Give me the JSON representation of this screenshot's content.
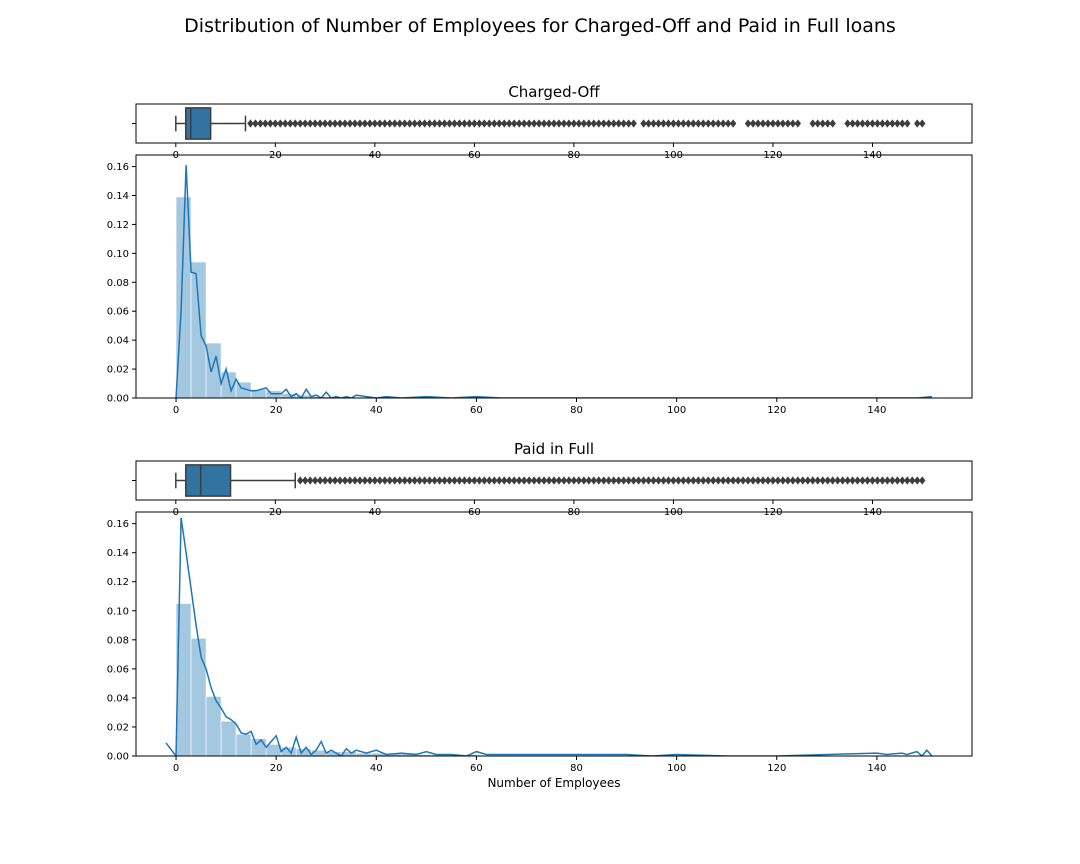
{
  "figure": {
    "suptitle": "Distribution of Number of Employees for Charged-Off and Paid in Full loans"
  },
  "colors": {
    "hist_fill": "#a5c8e1",
    "kde_line": "#1f77b4",
    "box_fill": "#3274a1",
    "box_edge": "#3d3d3d",
    "axes_edge": "#000000"
  },
  "chart_data": [
    {
      "type": "boxplot",
      "title": "Charged-Off",
      "xlim": [
        -8,
        160
      ],
      "xticks": [
        0,
        20,
        40,
        60,
        80,
        100,
        120,
        140
      ],
      "whisker_low": 0,
      "q1": 2,
      "median": 3,
      "q3": 7,
      "whisker_high": 14,
      "outliers": [
        15,
        16,
        17,
        18,
        19,
        20,
        21,
        22,
        23,
        24,
        25,
        26,
        27,
        28,
        29,
        30,
        31,
        32,
        33,
        34,
        35,
        36,
        37,
        38,
        39,
        40,
        41,
        42,
        43,
        44,
        45,
        46,
        47,
        48,
        49,
        50,
        51,
        52,
        53,
        54,
        55,
        56,
        57,
        58,
        59,
        60,
        61,
        62,
        63,
        64,
        65,
        66,
        67,
        68,
        69,
        70,
        71,
        72,
        73,
        74,
        75,
        76,
        77,
        78,
        79,
        80,
        81,
        82,
        83,
        84,
        85,
        86,
        87,
        88,
        89,
        90,
        91,
        92,
        94,
        95,
        96,
        97,
        98,
        99,
        100,
        101,
        102,
        103,
        104,
        105,
        106,
        107,
        108,
        109,
        110,
        111,
        112,
        115,
        116,
        117,
        118,
        119,
        120,
        121,
        122,
        123,
        124,
        125,
        128,
        129,
        130,
        131,
        132,
        135,
        136,
        137,
        138,
        139,
        140,
        141,
        142,
        143,
        144,
        145,
        146,
        147,
        149,
        150
      ]
    },
    {
      "type": "bar",
      "overlay": "line",
      "title": "",
      "xlim": [
        -8,
        159
      ],
      "ylim": [
        0,
        0.168
      ],
      "xticks": [
        0,
        20,
        40,
        60,
        80,
        100,
        120,
        140
      ],
      "yticks": [
        "0.00",
        "0.02",
        "0.04",
        "0.06",
        "0.08",
        "0.10",
        "0.12",
        "0.14",
        "0.16"
      ],
      "hist_bin_width": 3,
      "hist_values": [
        0.139,
        0.094,
        0.038,
        0.018,
        0.011,
        0.006,
        0.005,
        0.003,
        0.002,
        0.001,
        0.001,
        0.0005,
        0.0005,
        0.0003,
        0.0003,
        0.0003,
        0.0002,
        0.0002,
        0.0002,
        0.0002
      ],
      "kde_x": [
        0,
        1,
        2,
        3,
        4,
        5,
        6,
        7,
        8,
        9,
        10,
        11,
        12,
        13,
        14,
        15,
        16,
        17,
        18,
        19,
        20,
        21,
        22,
        23,
        24,
        25,
        26,
        27,
        28,
        29,
        30,
        31,
        32,
        33,
        34,
        35,
        36,
        38,
        40,
        42,
        45,
        50,
        55,
        60,
        65,
        70,
        75,
        80,
        90,
        100,
        110,
        120,
        130,
        140,
        145,
        148,
        151
      ],
      "kde_y": [
        0.0,
        0.06,
        0.161,
        0.087,
        0.086,
        0.043,
        0.036,
        0.018,
        0.029,
        0.01,
        0.02,
        0.005,
        0.013,
        0.007,
        0.006,
        0.005,
        0.005,
        0.006,
        0.007,
        0.003,
        0.003,
        0.003,
        0.006,
        0.001,
        0.003,
        0.0,
        0.006,
        0.001,
        0.002,
        0.0,
        0.004,
        0.0,
        0.001,
        0.0,
        0.001,
        0.0,
        0.002,
        0.001,
        0.0,
        0.001,
        0.0,
        0.001,
        0.0,
        0.001,
        0.0,
        0.0,
        0.0,
        0.0,
        0.0,
        0.0,
        0.0,
        0.0,
        0.0,
        0.0,
        0.0,
        0.0,
        0.001
      ]
    },
    {
      "type": "boxplot",
      "title": "Paid in Full",
      "xlim": [
        -8,
        160
      ],
      "xticks": [
        0,
        20,
        40,
        60,
        80,
        100,
        120,
        140
      ],
      "whisker_low": 0,
      "q1": 2,
      "median": 5,
      "q3": 11,
      "whisker_high": 24,
      "outliers": [
        25,
        26,
        27,
        28,
        29,
        30,
        31,
        32,
        33,
        34,
        35,
        36,
        37,
        38,
        39,
        40,
        41,
        42,
        43,
        44,
        45,
        46,
        47,
        48,
        49,
        50,
        51,
        52,
        53,
        54,
        55,
        56,
        57,
        58,
        59,
        60,
        61,
        62,
        63,
        64,
        65,
        66,
        67,
        68,
        69,
        70,
        71,
        72,
        73,
        74,
        75,
        76,
        77,
        78,
        79,
        80,
        81,
        82,
        83,
        84,
        85,
        86,
        87,
        88,
        89,
        90,
        91,
        92,
        93,
        94,
        95,
        96,
        97,
        98,
        99,
        100,
        101,
        102,
        103,
        104,
        105,
        106,
        107,
        108,
        109,
        110,
        111,
        112,
        113,
        114,
        115,
        116,
        117,
        118,
        119,
        120,
        121,
        122,
        123,
        124,
        125,
        126,
        127,
        128,
        129,
        130,
        131,
        132,
        133,
        134,
        135,
        136,
        137,
        138,
        139,
        140,
        141,
        142,
        143,
        144,
        145,
        146,
        147,
        148,
        149,
        150
      ]
    },
    {
      "type": "bar",
      "overlay": "line",
      "title": "",
      "xlabel": "Number of Employees",
      "xlim": [
        -8,
        159
      ],
      "ylim": [
        0,
        0.168
      ],
      "xticks": [
        0,
        20,
        40,
        60,
        80,
        100,
        120,
        140
      ],
      "yticks": [
        "0.00",
        "0.02",
        "0.04",
        "0.06",
        "0.08",
        "0.10",
        "0.12",
        "0.14",
        "0.16"
      ],
      "hist_bin_width": 3,
      "hist_values": [
        0.105,
        0.081,
        0.041,
        0.024,
        0.015,
        0.012,
        0.008,
        0.006,
        0.005,
        0.004,
        0.003,
        0.003,
        0.002,
        0.002,
        0.002,
        0.002,
        0.001,
        0.001,
        0.001,
        0.001
      ],
      "kde_x": [
        -2,
        0,
        1,
        2,
        3,
        4,
        5,
        6,
        7,
        8,
        9,
        10,
        11,
        12,
        13,
        14,
        15,
        16,
        17,
        18,
        19,
        20,
        21,
        22,
        23,
        24,
        25,
        26,
        27,
        28,
        29,
        30,
        31,
        32,
        33,
        34,
        35,
        36,
        38,
        40,
        42,
        45,
        48,
        50,
        52,
        55,
        58,
        60,
        62,
        65,
        70,
        75,
        80,
        85,
        90,
        95,
        100,
        110,
        120,
        130,
        140,
        142,
        145,
        146,
        148,
        149,
        150,
        151
      ],
      "kde_y": [
        0.009,
        0.0,
        0.164,
        0.14,
        0.115,
        0.09,
        0.068,
        0.06,
        0.047,
        0.038,
        0.033,
        0.027,
        0.025,
        0.022,
        0.016,
        0.015,
        0.017,
        0.008,
        0.011,
        0.006,
        0.01,
        0.014,
        0.003,
        0.006,
        0.002,
        0.013,
        0.002,
        0.006,
        0.001,
        0.004,
        0.01,
        0.002,
        0.004,
        0.002,
        0.0,
        0.005,
        0.002,
        0.004,
        0.002,
        0.004,
        0.001,
        0.002,
        0.001,
        0.003,
        0.001,
        0.001,
        0.0,
        0.003,
        0.001,
        0.001,
        0.001,
        0.001,
        0.001,
        0.001,
        0.001,
        0.0,
        0.001,
        0.0,
        0.0,
        0.001,
        0.002,
        0.001,
        0.002,
        0.001,
        0.003,
        0.0,
        0.004,
        0.0
      ]
    }
  ]
}
